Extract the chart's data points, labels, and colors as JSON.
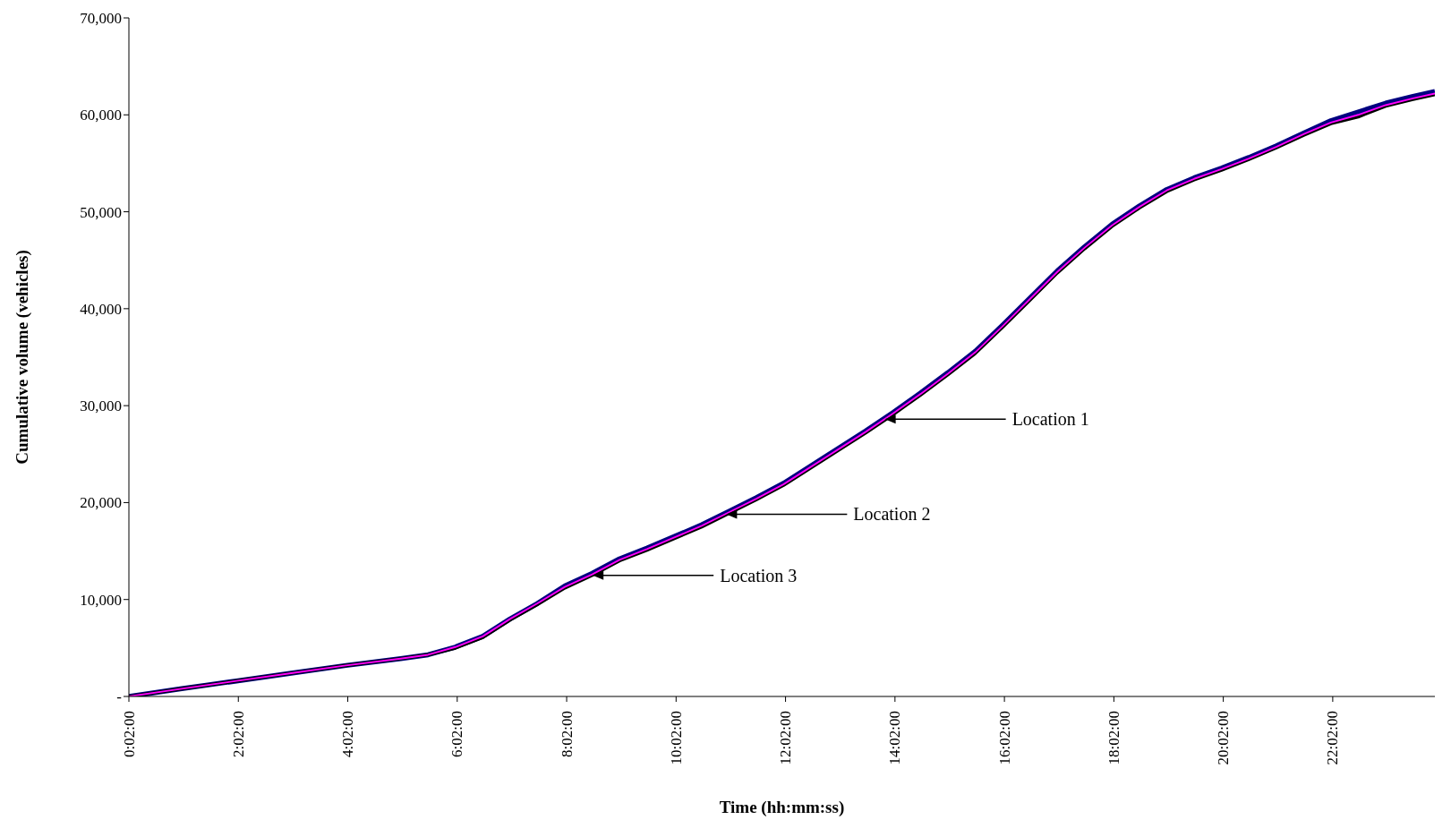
{
  "chart_data": {
    "type": "line",
    "xlabel": "Time (hh:mm:ss)",
    "ylabel": "Cumulative volume (vehicles)",
    "x": [
      0.0333,
      1,
      2,
      3,
      4,
      5,
      5.5,
      6,
      6.5,
      7,
      7.5,
      8,
      8.5,
      9,
      9.5,
      10,
      10.5,
      11,
      11.5,
      12,
      12.5,
      13,
      13.5,
      14,
      14.5,
      15,
      15.5,
      16,
      16.5,
      17,
      17.5,
      18,
      18.5,
      19,
      19.5,
      20,
      20.5,
      21,
      21.5,
      22,
      22.5,
      23,
      23.5,
      23.9
    ],
    "series": [
      {
        "color": "#000080",
        "values": [
          0,
          800,
          1600,
          2400,
          3200,
          3900,
          4300,
          5100,
          6200,
          8000,
          9600,
          11400,
          12700,
          14200,
          15300,
          16500,
          17700,
          19100,
          20500,
          22000,
          23800,
          25600,
          27400,
          29300,
          31300,
          33400,
          35600,
          38300,
          41100,
          43900,
          46400,
          48700,
          50600,
          52300,
          53500,
          54500,
          55600,
          56800,
          58100,
          59400,
          60300,
          61200,
          61900,
          62400
        ]
      },
      {
        "color": "#000000",
        "values": [
          0,
          800,
          1600,
          2400,
          3200,
          3900,
          4300,
          5000,
          6100,
          7900,
          9500,
          11200,
          12500,
          14000,
          15100,
          16300,
          17500,
          18900,
          20300,
          21800,
          23600,
          25400,
          27200,
          29100,
          31100,
          33200,
          35400,
          38100,
          40900,
          43700,
          46200,
          48500,
          50400,
          52100,
          53300,
          54300,
          55400,
          56600,
          57900,
          59100,
          59800,
          60900,
          61600,
          62100
        ]
      },
      {
        "color": "#ff00ff",
        "values": [
          0,
          800,
          1600,
          2400,
          3200,
          3900,
          4300,
          5100,
          6200,
          8000,
          9600,
          11300,
          12600,
          14100,
          15200,
          16400,
          17600,
          19000,
          20400,
          21900,
          23700,
          25500,
          27300,
          29200,
          31200,
          33300,
          35500,
          38200,
          41000,
          43800,
          46300,
          48600,
          50500,
          52200,
          53400,
          54400,
          55500,
          56700,
          58000,
          59200,
          60000,
          61000,
          61700,
          62200
        ]
      }
    ],
    "xlim": [
      0.0333,
      23.9
    ],
    "xticks": [
      {
        "value": 0.0333,
        "label": "0:02:00"
      },
      {
        "value": 2.0333,
        "label": "2:02:00"
      },
      {
        "value": 4.0333,
        "label": "4:02:00"
      },
      {
        "value": 6.0333,
        "label": "6:02:00"
      },
      {
        "value": 8.0333,
        "label": "8:02:00"
      },
      {
        "value": 10.0333,
        "label": "10:02:00"
      },
      {
        "value": 12.0333,
        "label": "12:02:00"
      },
      {
        "value": 14.0333,
        "label": "14:02:00"
      },
      {
        "value": 16.0333,
        "label": "16:02:00"
      },
      {
        "value": 18.0333,
        "label": "18:02:00"
      },
      {
        "value": 20.0333,
        "label": "20:02:00"
      },
      {
        "value": 22.0333,
        "label": "22:02:00"
      }
    ],
    "ylim": [
      0,
      70000
    ],
    "yticks": [
      {
        "value": 0,
        "label": "-"
      },
      {
        "value": 10000,
        "label": "10,000"
      },
      {
        "value": 20000,
        "label": "20,000"
      },
      {
        "value": 30000,
        "label": "30,000"
      },
      {
        "value": 40000,
        "label": "40,000"
      },
      {
        "value": 50000,
        "label": "50,000"
      },
      {
        "value": 60000,
        "label": "60,000"
      },
      {
        "value": 70000,
        "label": "70,000"
      }
    ],
    "annotations": [
      {
        "text": "Location 1",
        "x": 13.85,
        "y": 28600
      },
      {
        "text": "Location 2",
        "x": 10.95,
        "y": 18800
      },
      {
        "text": "Location 3",
        "x": 8.51,
        "y": 12500
      }
    ],
    "grid": false,
    "legend": false,
    "marker": "none",
    "line_style": "solid"
  }
}
